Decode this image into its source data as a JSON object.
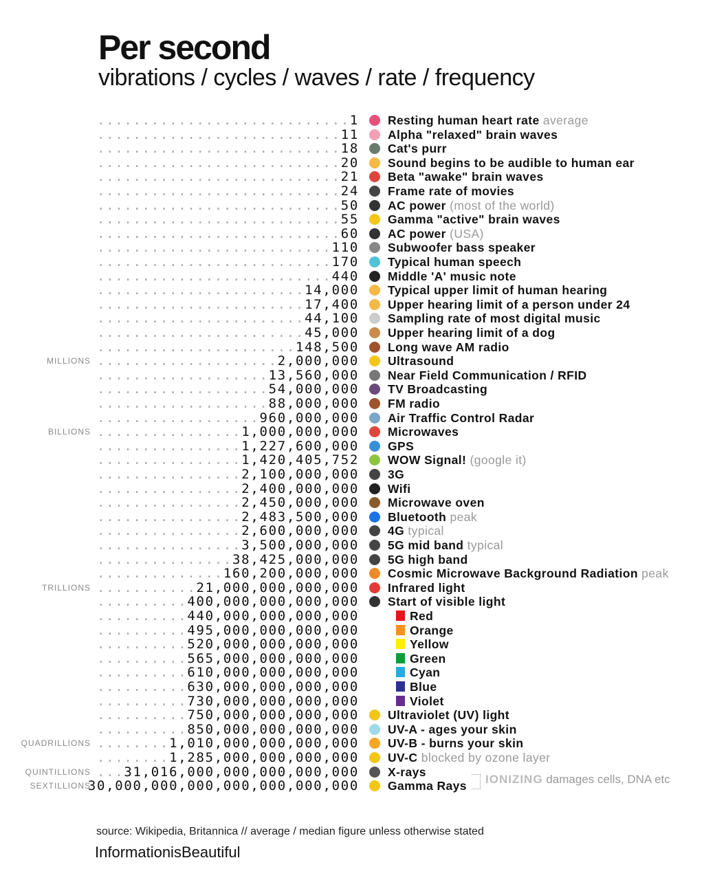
{
  "header": {
    "title": "Per second",
    "subtitle": "vibrations / cycles / waves / rate / frequency"
  },
  "rows": [
    {
      "value": "1",
      "label": "Resting human heart rate",
      "note": "average",
      "icon": "heart-icon",
      "color": "#e8507a"
    },
    {
      "value": "11",
      "label": "Alpha \"relaxed\" brain waves",
      "icon": "brain-icon",
      "color": "#f3a0b5"
    },
    {
      "value": "18",
      "label": "Cat's purr",
      "icon": "cat-icon",
      "color": "#6b7a70"
    },
    {
      "value": "20",
      "label": "Sound begins to be audible to human ear",
      "icon": "ear-icon",
      "color": "#f5b944"
    },
    {
      "value": "21",
      "label": "Beta \"awake\" brain waves",
      "icon": "alarm-clock-icon",
      "color": "#e0453c"
    },
    {
      "value": "24",
      "label": "Frame rate of movies",
      "icon": "film-camera-icon",
      "color": "#444"
    },
    {
      "value": "50",
      "label": "AC power",
      "note": "(most of the world)",
      "icon": "plug-icon",
      "color": "#333"
    },
    {
      "value": "55",
      "label": "Gamma \"active\" brain waves",
      "icon": "star-icon",
      "color": "#f5c518"
    },
    {
      "value": "60",
      "label": "AC power",
      "note": "(USA)",
      "icon": "plug-icon",
      "color": "#333"
    },
    {
      "value": "110",
      "label": "Subwoofer bass speaker",
      "icon": "speaker-icon",
      "color": "#888"
    },
    {
      "value": "170",
      "label": "Typical human speech",
      "icon": "speech-bubble-icon",
      "color": "#4fc3d9"
    },
    {
      "value": "440",
      "label": "Middle 'A' music note",
      "icon": "music-note-icon",
      "color": "#222"
    },
    {
      "value": "14,000",
      "label": "Typical upper limit of human hearing",
      "icon": "ear-icon",
      "color": "#f5b944"
    },
    {
      "value": "17,400",
      "label": "Upper hearing limit of a person under 24",
      "icon": "ear-icon",
      "color": "#f5b944"
    },
    {
      "value": "44,100",
      "label": "Sampling rate of most digital music",
      "icon": "cd-icon",
      "color": "#ccc"
    },
    {
      "value": "45,000",
      "label": "Upper hearing limit of a dog",
      "icon": "dog-icon",
      "color": "#c98b4a"
    },
    {
      "value": "148,500",
      "label": "Long wave AM radio",
      "icon": "radio-icon",
      "color": "#a0522d"
    },
    {
      "value": "2,000,000",
      "label": "Ultrasound",
      "icon": "face-mask-icon",
      "color": "#f5c518",
      "scale": "MILLIONS"
    },
    {
      "value": "13,560,000",
      "label": "Near Field Communication / RFID",
      "icon": "card-icon",
      "color": "#777"
    },
    {
      "value": "54,000,000",
      "label": "TV Broadcasting",
      "icon": "tv-icon",
      "color": "#6a4a7a"
    },
    {
      "value": "88,000,000",
      "label": "FM radio",
      "icon": "radio-icon",
      "color": "#a0522d"
    },
    {
      "value": "960,000,000",
      "label": "Air Traffic Control Radar",
      "icon": "airplane-icon",
      "color": "#7aa6c9"
    },
    {
      "value": "1,000,000,000",
      "label": "Microwaves",
      "icon": "hot-springs-icon",
      "color": "#e0453c",
      "scale": "BILLIONS"
    },
    {
      "value": "1,227,600,000",
      "label": "GPS",
      "icon": "globe-icon",
      "color": "#3a8fd9"
    },
    {
      "value": "1,420,405,752",
      "label": "WOW Signal!",
      "note": "(google it)",
      "icon": "alien-icon",
      "color": "#8cc63f"
    },
    {
      "value": "2,100,000,000",
      "label": "3G",
      "icon": "phone-icon",
      "color": "#444"
    },
    {
      "value": "2,400,000,000",
      "label": "Wifi",
      "icon": "wifi-icon",
      "color": "#222"
    },
    {
      "value": "2,450,000,000",
      "label": "Microwave oven",
      "icon": "bowl-icon",
      "color": "#8b5a2b"
    },
    {
      "value": "2,483,500,000",
      "label": "Bluetooth",
      "note": "peak",
      "icon": "bluetooth-icon",
      "color": "#1a73e8"
    },
    {
      "value": "2,600,000,000",
      "label": "4G",
      "note": "typical",
      "icon": "phone-icon",
      "color": "#444"
    },
    {
      "value": "3,500,000,000",
      "label": "5G mid band",
      "note": "typical",
      "icon": "phone-icon",
      "color": "#444"
    },
    {
      "value": "38,425,000,000",
      "label": "5G high band",
      "icon": "phone-icon",
      "color": "#444"
    },
    {
      "value": "160,200,000,000",
      "label": "Cosmic Microwave Background Radiation",
      "note": "peak",
      "icon": "explosion-icon",
      "color": "#f08a24"
    },
    {
      "value": "21,000,000,000,000",
      "label": "Infrared light",
      "icon": "red-circle-icon",
      "color": "#e53935",
      "scale": "TRILLIONS"
    },
    {
      "value": "400,000,000,000,000",
      "label": "Start of visible light",
      "icon": "eye-icon",
      "color": "#333"
    },
    {
      "value": "440,000,000,000,000",
      "label": "Red",
      "swatch": "#e8141c"
    },
    {
      "value": "495,000,000,000,000",
      "label": "Orange",
      "swatch": "#f7931e"
    },
    {
      "value": "520,000,000,000,000",
      "label": "Yellow",
      "swatch": "#ffef00"
    },
    {
      "value": "565,000,000,000,000",
      "label": "Green",
      "swatch": "#0f9d3a"
    },
    {
      "value": "610,000,000,000,000",
      "label": "Cyan",
      "swatch": "#29abe2"
    },
    {
      "value": "630,000,000,000,000",
      "label": "Blue",
      "swatch": "#2e3192"
    },
    {
      "value": "730,000,000,000,000",
      "label": "Violet",
      "swatch": "#662d91"
    },
    {
      "value": "750,000,000,000,000",
      "label": "Ultraviolet (UV) light",
      "icon": "sun-icon",
      "color": "#f5c518"
    },
    {
      "value": "850,000,000,000,000",
      "label": "UV-A - ages your skin",
      "icon": "beach-icon",
      "color": "#9fd8e8"
    },
    {
      "value": "1,010,000,000,000,000",
      "label": "UV-B - burns your skin",
      "icon": "smiling-face-icon",
      "color": "#f5a623",
      "scale": "QUADRILLIONS"
    },
    {
      "value": "1,285,000,000,000,000",
      "label": "UV-C",
      "note": "blocked by ozone layer",
      "icon": "sun-icon",
      "color": "#f5c518"
    },
    {
      "value": "31,016,000,000,000,000,000",
      "label": "X-rays",
      "icon": "x-ray-icon",
      "color": "#555",
      "scale": "QUINTILLIONS"
    },
    {
      "value": "30,000,000,000,000,000,000,000",
      "label": "Gamma Rays",
      "icon": "radioactive-icon",
      "color": "#f5c518",
      "scale": "SEXTILLIONS"
    }
  ],
  "ionizing": {
    "label": "IONIZING",
    "note": "damages cells, DNA etc"
  },
  "footer": {
    "source": "source: Wikipedia, Britannica // average / median figure unless otherwise stated",
    "brand": "InformationisBeautiful"
  }
}
